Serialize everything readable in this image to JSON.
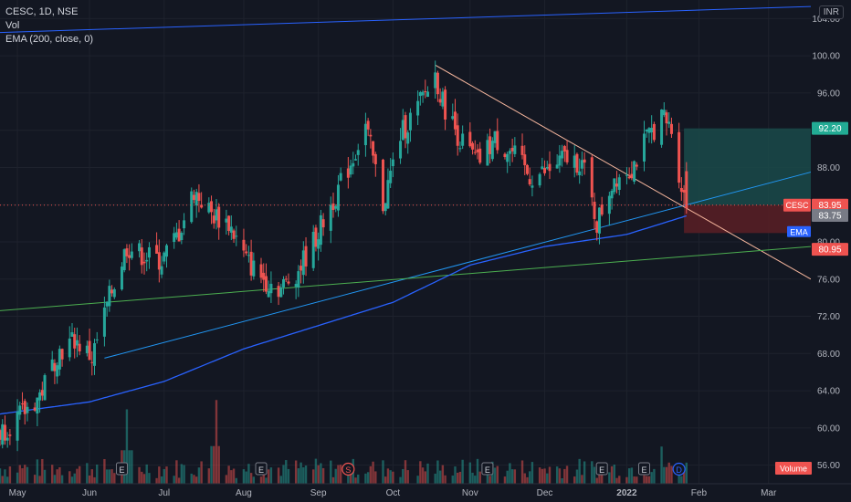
{
  "legend": {
    "symbol_line": "CESC, 1D, NSE",
    "vol_label": "Vol",
    "ema_label": "EMA (200, close, 0)"
  },
  "currency": "INR",
  "price_axis": {
    "ticks": [
      "104.00",
      "100.00",
      "96.00",
      "92.00",
      "88.00",
      "84.00",
      "80.00",
      "76.00",
      "72.00",
      "68.00",
      "64.00",
      "60.00",
      "56.00"
    ]
  },
  "time_axis": {
    "labels": [
      "May",
      "Jun",
      "Jul",
      "Aug",
      "Sep",
      "Oct",
      "Nov",
      "Dec",
      "2022",
      "Feb",
      "Mar"
    ]
  },
  "price_tags": {
    "target": "92.20",
    "symbol": "CESC",
    "last": "83.95",
    "prev": "83.75",
    "ema_tag": "EMA",
    "stop": "80.95",
    "volume_tag": "Volume"
  },
  "event_markers": [
    "E",
    "E",
    "S",
    "E",
    "E",
    "E",
    "D"
  ],
  "colors": {
    "background": "#131722",
    "up": "#26a69a",
    "down": "#ef5350",
    "ema": "#2962ff",
    "trend_blue": "#2196f3",
    "trend_up_top": "#2962ff",
    "trend_down": "#f7b79e",
    "trend_green": "#4caf50",
    "target_zone": "#1a4a4a",
    "stop_zone": "#5a1e24"
  },
  "chart_data": {
    "type": "candlestick",
    "title": "CESC, 1D, NSE",
    "ylim": [
      54,
      106
    ],
    "y_ticks": [
      104,
      100,
      96,
      92,
      88,
      84,
      80,
      76,
      72,
      68,
      64,
      60,
      56
    ],
    "x_range": [
      "2021-04-26",
      "2022-03-18"
    ],
    "months": [
      {
        "label": "May",
        "date": "2021-05-03"
      },
      {
        "label": "Jun",
        "date": "2021-06-01"
      },
      {
        "label": "Jul",
        "date": "2021-07-01"
      },
      {
        "label": "Aug",
        "date": "2021-08-02"
      },
      {
        "label": "Sep",
        "date": "2021-09-01"
      },
      {
        "label": "Oct",
        "date": "2021-10-01"
      },
      {
        "label": "Nov",
        "date": "2021-11-01"
      },
      {
        "label": "Dec",
        "date": "2021-12-01"
      },
      {
        "label": "2022",
        "date": "2022-01-03"
      },
      {
        "label": "Feb",
        "date": "2022-02-01"
      },
      {
        "label": "Mar",
        "date": "2022-03-01"
      }
    ],
    "close_path": [
      [
        "2021-04-26",
        59.5
      ],
      [
        "2021-05-05",
        61.5
      ],
      [
        "2021-05-12",
        63.5
      ],
      [
        "2021-05-19",
        68.0
      ],
      [
        "2021-05-26",
        69.5
      ],
      [
        "2021-06-02",
        67.5
      ],
      [
        "2021-06-09",
        74.0
      ],
      [
        "2021-06-16",
        79.5
      ],
      [
        "2021-06-23",
        78.5
      ],
      [
        "2021-06-30",
        78.0
      ],
      [
        "2021-07-07",
        81.0
      ],
      [
        "2021-07-13",
        85.5
      ],
      [
        "2021-07-20",
        83.0
      ],
      [
        "2021-07-27",
        82.0
      ],
      [
        "2021-08-03",
        78.0
      ],
      [
        "2021-08-10",
        76.0
      ],
      [
        "2021-08-17",
        75.0
      ],
      [
        "2021-08-24",
        77.0
      ],
      [
        "2021-08-31",
        80.5
      ],
      [
        "2021-09-07",
        84.5
      ],
      [
        "2021-09-14",
        88.5
      ],
      [
        "2021-09-20",
        92.5
      ],
      [
        "2021-09-27",
        84.0
      ],
      [
        "2021-10-04",
        91.5
      ],
      [
        "2021-10-11",
        94.5
      ],
      [
        "2021-10-18",
        98.0
      ],
      [
        "2021-10-21",
        95.0
      ],
      [
        "2021-10-28",
        91.0
      ],
      [
        "2021-11-04",
        88.5
      ],
      [
        "2021-11-11",
        91.0
      ],
      [
        "2021-11-18",
        89.5
      ],
      [
        "2021-11-25",
        87.0
      ],
      [
        "2021-12-02",
        87.5
      ],
      [
        "2021-12-09",
        89.0
      ],
      [
        "2021-12-16",
        88.5
      ],
      [
        "2021-12-22",
        82.0
      ],
      [
        "2021-12-29",
        87.0
      ],
      [
        "2022-01-05",
        88.0
      ],
      [
        "2022-01-11",
        91.0
      ],
      [
        "2022-01-17",
        93.5
      ],
      [
        "2022-01-21",
        92.0
      ],
      [
        "2022-01-25",
        86.0
      ],
      [
        "2022-01-27",
        83.95
      ]
    ],
    "volume_peaks": [
      [
        "2021-06-16",
        62
      ],
      [
        "2021-07-22",
        63
      ],
      [
        "2021-08-10",
        55
      ],
      [
        "2021-10-08",
        54
      ],
      [
        "2021-10-21",
        56
      ],
      [
        "2022-01-17",
        58
      ]
    ],
    "ema_200": [
      [
        "2021-04-26",
        61.5
      ],
      [
        "2021-06-01",
        62.8
      ],
      [
        "2021-07-01",
        65.0
      ],
      [
        "2021-08-02",
        68.5
      ],
      [
        "2021-09-01",
        71.0
      ],
      [
        "2021-10-01",
        73.5
      ],
      [
        "2021-11-01",
        77.5
      ],
      [
        "2021-12-01",
        79.5
      ],
      [
        "2022-01-03",
        80.8
      ],
      [
        "2022-01-27",
        82.8
      ]
    ],
    "trendlines": [
      {
        "name": "upper-channel",
        "from": [
          "2021-04-26",
          102.5
        ],
        "to": [
          "2022-03-18",
          105.3
        ]
      },
      {
        "name": "rising-support",
        "from": [
          "2021-06-07",
          67.5
        ],
        "to": [
          "2022-03-18",
          87.5
        ]
      },
      {
        "name": "falling-resistance",
        "from": [
          "2021-10-18",
          99.0
        ],
        "to": [
          "2022-03-18",
          76.0
        ]
      },
      {
        "name": "long-term-support",
        "from": [
          "2021-04-26",
          72.6
        ],
        "to": [
          "2022-03-18",
          79.5
        ]
      }
    ],
    "position": {
      "entry": 83.95,
      "target": 92.2,
      "stop": 80.95,
      "from": "2022-01-26",
      "to": "2022-03-18"
    }
  }
}
